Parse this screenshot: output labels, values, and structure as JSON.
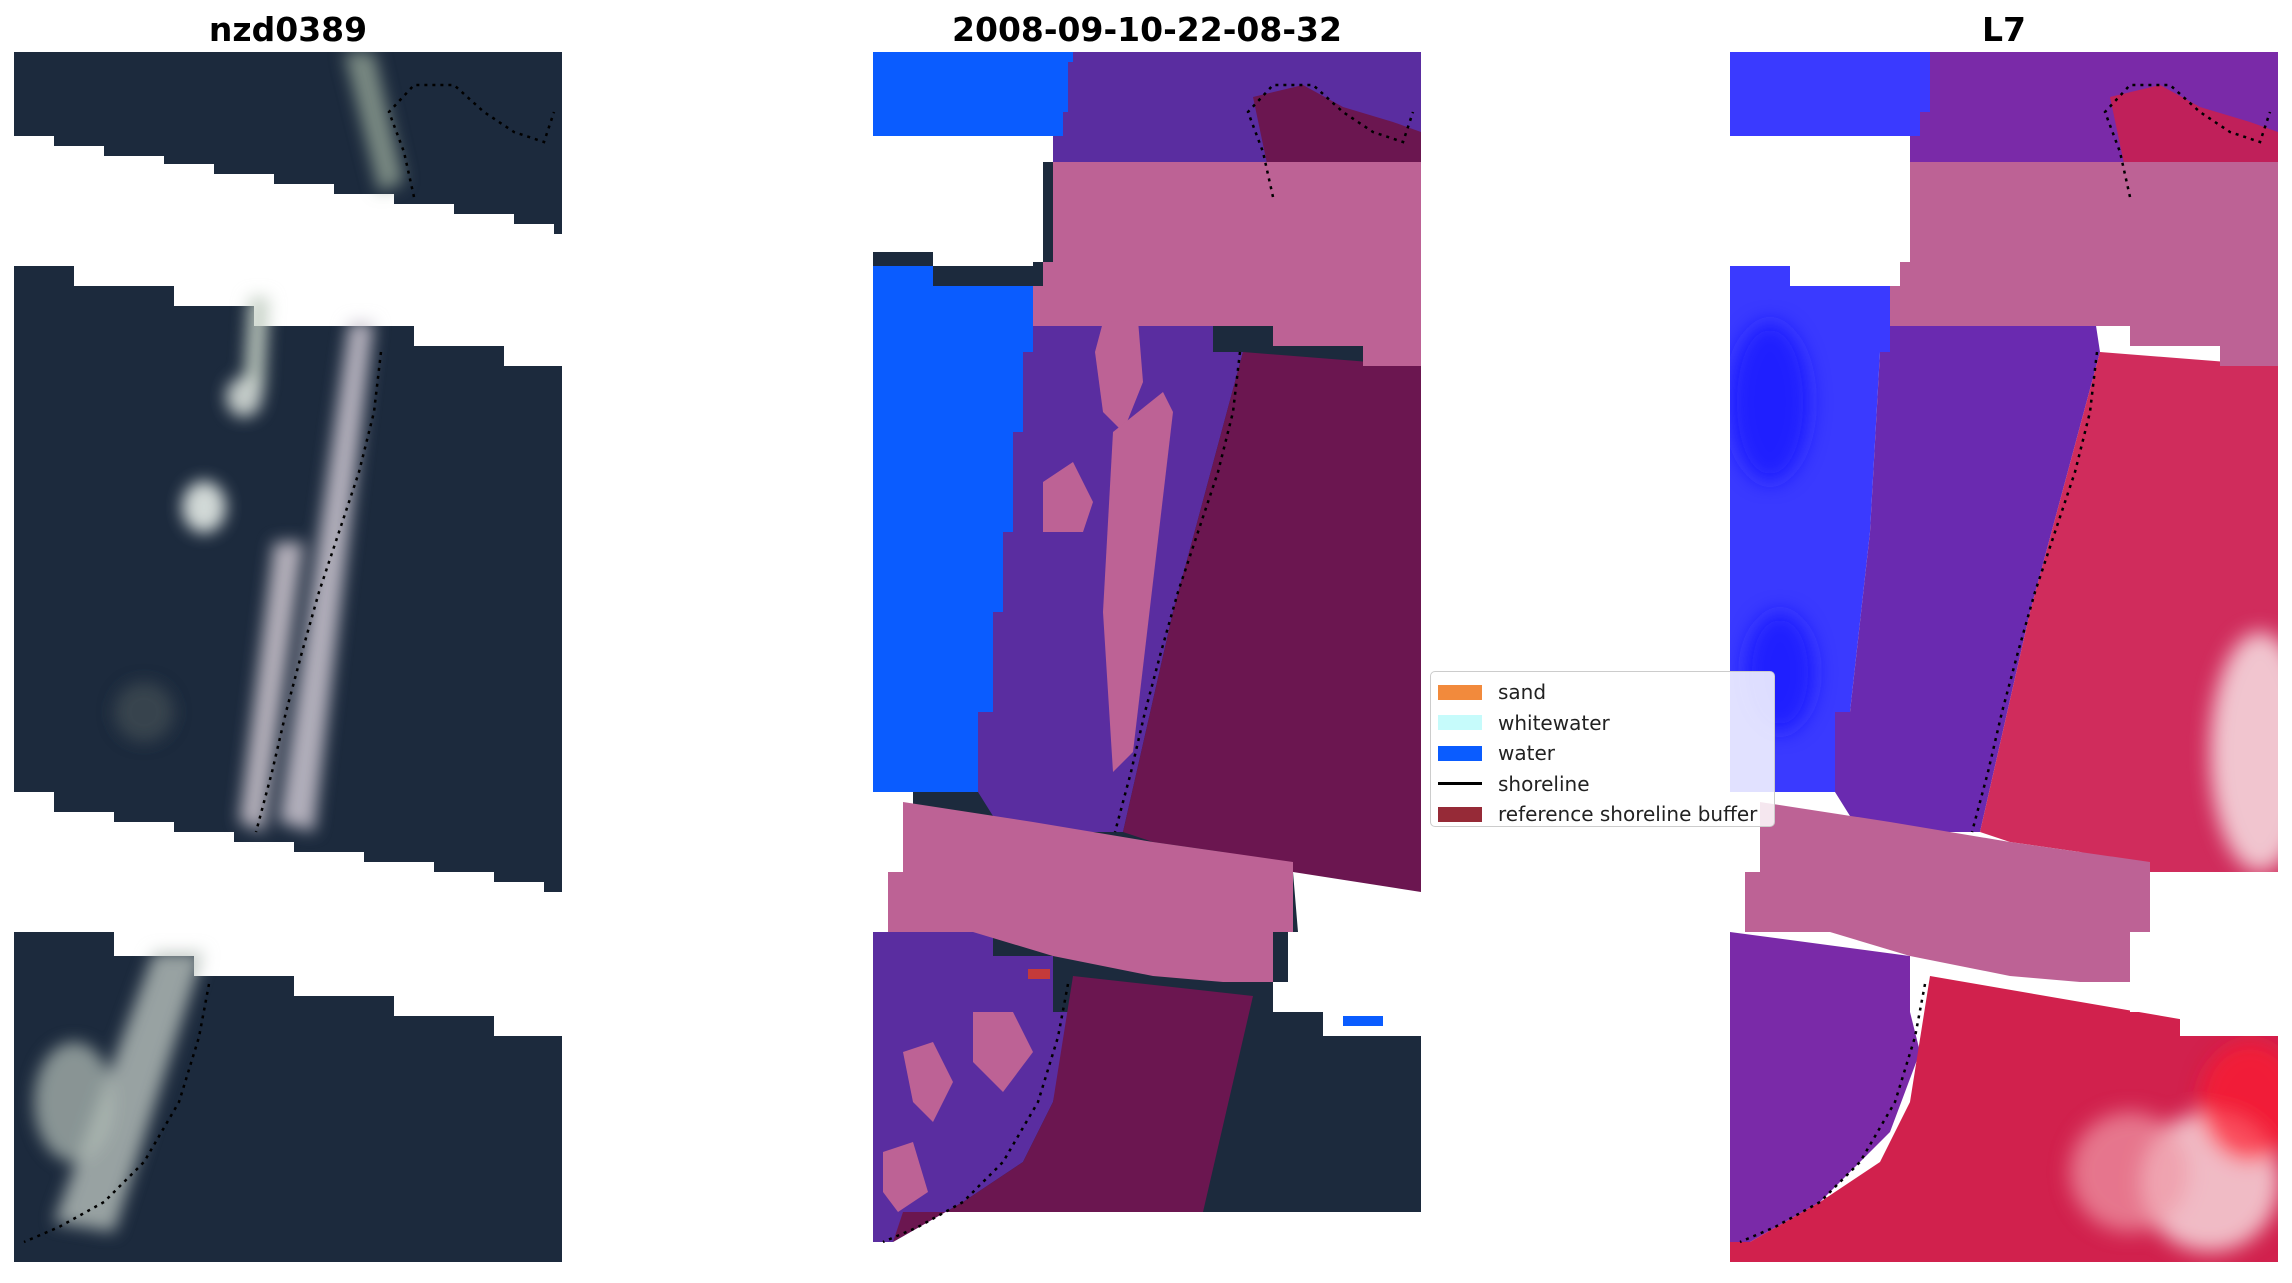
{
  "panels": [
    {
      "title": "nzd0389"
    },
    {
      "title": "2008-09-10-22-08-32"
    },
    {
      "title": "L7"
    }
  ],
  "legend": {
    "entries": [
      {
        "label": "sand",
        "color": "#f28a3c",
        "kind": "patch"
      },
      {
        "label": "whitewater",
        "color": "#c6fbfb",
        "kind": "patch"
      },
      {
        "label": "water",
        "color": "#0a5cff",
        "kind": "patch"
      },
      {
        "label": "shoreline",
        "color": "#000000",
        "kind": "line"
      },
      {
        "label": "reference shoreline buffer",
        "color": "#962a37",
        "kind": "patch"
      }
    ]
  },
  "colors": {
    "land_dark": "#1c2a3d",
    "water_class": "#0a5cff",
    "land_class": "#5a2da0",
    "buffer_class": "#6b1650",
    "cloud_mask": "#bd6295",
    "index_water": "#3a3aff",
    "index_land": "#d62550",
    "shoreline": "#000000"
  }
}
